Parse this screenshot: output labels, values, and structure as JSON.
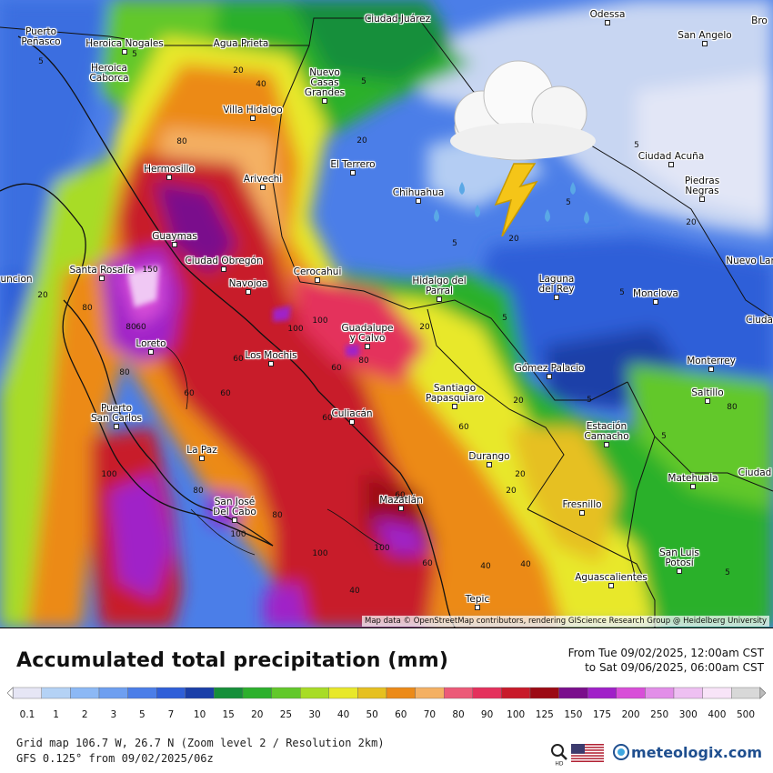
{
  "map": {
    "attribution": "Map data © OpenStreetMap contributors, rendering GIScience Research Group @ Heidelberg University",
    "cities": [
      {
        "name": "Puerto\nPeñasco",
        "dot": false
      },
      {
        "name": "Heroica Nogales",
        "dot": true
      },
      {
        "name": "Agua Prieta",
        "dot": false
      },
      {
        "name": "Ciudad Juárez",
        "dot": false
      },
      {
        "name": "Odessa",
        "dot": true
      },
      {
        "name": "San Angelo",
        "dot": true
      },
      {
        "name": "Heroica\nCaborca",
        "dot": false
      },
      {
        "name": "Nuevo\nCasas\nGrandes",
        "dot": true
      },
      {
        "name": "Villa Hidalgo",
        "dot": true
      },
      {
        "name": "Hermosillo",
        "dot": true
      },
      {
        "name": "Arivechi",
        "dot": true
      },
      {
        "name": "El Terrero",
        "dot": true
      },
      {
        "name": "Chihuahua",
        "dot": true
      },
      {
        "name": "Ciudad Acuña",
        "dot": true
      },
      {
        "name": "Piedras\nNegras",
        "dot": true
      },
      {
        "name": "Guaymas",
        "dot": true
      },
      {
        "name": "Ciudad Obregón",
        "dot": true
      },
      {
        "name": "Santa Rosalía",
        "dot": true
      },
      {
        "name": "Navojoa",
        "dot": true
      },
      {
        "name": "Cerocahui",
        "dot": true
      },
      {
        "name": "Hidalgo del\nParral",
        "dot": true
      },
      {
        "name": "Laguna\ndel Rey",
        "dot": true
      },
      {
        "name": "Monclova",
        "dot": true
      },
      {
        "name": "Nuevo Lar",
        "dot": false
      },
      {
        "name": "Loreto",
        "dot": true
      },
      {
        "name": "Guadalupe\ny Calvo",
        "dot": true
      },
      {
        "name": "Los Mochis",
        "dot": true
      },
      {
        "name": "Gómez Palacio",
        "dot": true
      },
      {
        "name": "Monterrey",
        "dot": true
      },
      {
        "name": "Saltillo",
        "dot": true
      },
      {
        "name": "Puerto\nSan Carlos",
        "dot": true
      },
      {
        "name": "Santiago\nPapasquiaro",
        "dot": true
      },
      {
        "name": "Culiacán",
        "dot": true
      },
      {
        "name": "Estación\nCamacho",
        "dot": true
      },
      {
        "name": "La Paz",
        "dot": true
      },
      {
        "name": "Durango",
        "dot": true
      },
      {
        "name": "Matehuala",
        "dot": true
      },
      {
        "name": "Ciudad",
        "dot": false
      },
      {
        "name": "San José\nDel Cabo",
        "dot": true
      },
      {
        "name": "Mazatlán",
        "dot": true
      },
      {
        "name": "Fresnillo",
        "dot": true
      },
      {
        "name": "San Luis\nPotosí",
        "dot": true
      },
      {
        "name": "Aguascalientes",
        "dot": true
      },
      {
        "name": "Tepic",
        "dot": true
      },
      {
        "name": "Bro",
        "dot": false
      },
      {
        "name": "Ciuda",
        "dot": false
      },
      {
        "name": "uncion",
        "dot": false
      }
    ],
    "contour_labels": [
      "5",
      "5",
      "20",
      "40",
      "80",
      "5",
      "5",
      "20",
      "20",
      "20",
      "5",
      "5",
      "80",
      "80",
      "20",
      "5",
      "20",
      "60",
      "100",
      "5",
      "60",
      "80",
      "100",
      "5",
      "80",
      "60",
      "100",
      "60",
      "20",
      "60",
      "80",
      "60",
      "100",
      "100",
      "60",
      "40",
      "80",
      "100",
      "150",
      "60",
      "40",
      "20",
      "40",
      "5",
      "80",
      "60",
      "20",
      "5"
    ]
  },
  "title": "Accumulated total precipitation (mm)",
  "period": {
    "from": "From Tue 09/02/2025, 12:00am CST",
    "to": "to Sat 09/06/2025, 06:00am CST"
  },
  "legend": {
    "labels": [
      "0.1",
      "1",
      "2",
      "3",
      "5",
      "7",
      "10",
      "15",
      "20",
      "25",
      "30",
      "40",
      "50",
      "60",
      "70",
      "80",
      "90",
      "100",
      "125",
      "150",
      "175",
      "200",
      "250",
      "300",
      "400",
      "500"
    ],
    "colors": [
      "#e6e6f5",
      "#b4d2f5",
      "#8cb8f5",
      "#6e9ff0",
      "#4b7ee8",
      "#2f5fd8",
      "#1b3fa8",
      "#168f3a",
      "#2cb02c",
      "#62c82a",
      "#a8dc26",
      "#e8e82a",
      "#e6c020",
      "#ec8a18",
      "#f4b063",
      "#ec5a78",
      "#e4305c",
      "#c81a2a",
      "#9c0a14",
      "#7a0e8c",
      "#a020c8",
      "#d84ed8",
      "#e28ee8",
      "#eec0f2",
      "#f8e4f8",
      "#d8d8d8"
    ]
  },
  "footer": {
    "line1": "Grid map 106.7 W, 26.7 N (Zoom level 2 / Resolution 2km)",
    "line2": "GFS 0.125° from  09/02/2025/06z"
  },
  "brand": "meteologix.com",
  "icons": [
    "weather-cloud-rain-lightning-icon",
    "hd-magnifier-icon",
    "us-flag-icon",
    "meteologix-logo-icon"
  ]
}
